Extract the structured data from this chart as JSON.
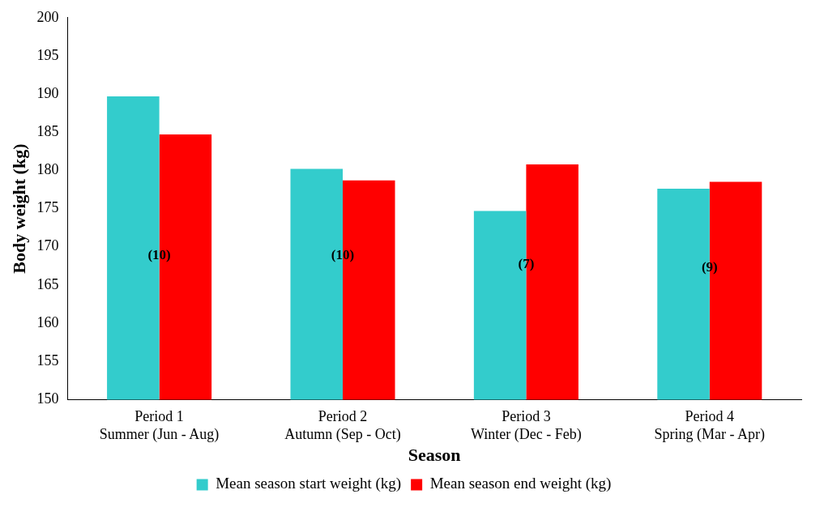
{
  "chart_data": {
    "type": "bar",
    "xlabel": "Season",
    "ylabel": "Body weight (kg)",
    "categories": [
      "Period 1\nSummer (Jun - Aug)",
      "Period 2\nAutumn (Sep - Oct)",
      "Period 3\nWinter (Dec - Feb)",
      "Period 4\nSpring (Mar - Apr)"
    ],
    "series": [
      {
        "name": "Mean season start weight (kg)",
        "color": "#33cccc",
        "values": [
          189.7,
          180.2,
          174.7,
          177.6
        ]
      },
      {
        "name": "Mean season end weight (kg)",
        "color": "#ff0000",
        "values": [
          184.7,
          178.7,
          180.8,
          178.5
        ]
      }
    ],
    "ylim": [
      150,
      200
    ],
    "yticks": [
      150,
      155,
      160,
      165,
      170,
      175,
      180,
      185,
      190,
      195,
      200
    ],
    "grid": false,
    "legend": "bottom",
    "annotations": [
      {
        "text": "(10)",
        "x": "Period 1\nSummer (Jun - Aug)",
        "y": 168.8
      },
      {
        "text": "(10)",
        "x": "Period 2\nAutumn (Sep - Oct)",
        "y": 168.8
      },
      {
        "text": "(7)",
        "x": "Period 3\nWinter (Dec - Feb)",
        "y": 167.7
      },
      {
        "text": "(9)",
        "x": "Period 4\nSpring (Mar - Apr)",
        "y": 167.3
      }
    ]
  }
}
